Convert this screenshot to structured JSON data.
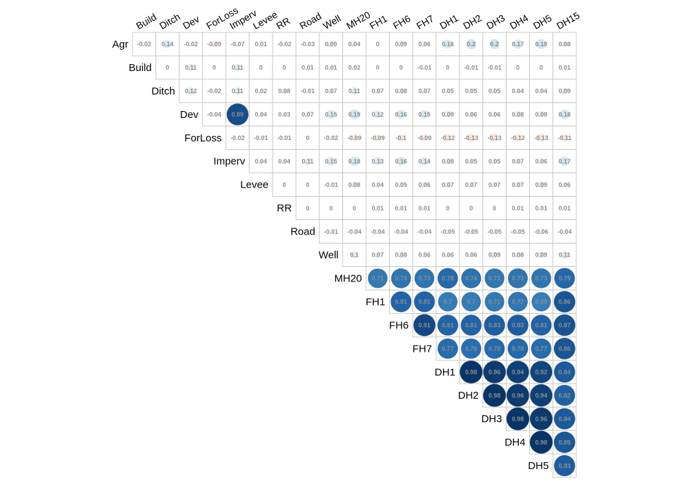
{
  "chart_data": {
    "type": "heatmap",
    "variant": "correlation-upper-triangle-circles",
    "title": "",
    "row_labels": [
      "Agr",
      "Build",
      "Ditch",
      "Dev",
      "ForLoss",
      "Imperv",
      "Levee",
      "RR",
      "Road",
      "Well",
      "MH20",
      "FH1",
      "FH6",
      "FH7",
      "DH1",
      "DH2",
      "DH3",
      "DH4",
      "DH5"
    ],
    "col_labels": [
      "Build",
      "Ditch",
      "Dev",
      "ForLoss",
      "Imperv",
      "Levee",
      "RR",
      "Road",
      "Well",
      "MH20",
      "FH1",
      "FH6",
      "FH7",
      "DH1",
      "DH2",
      "DH3",
      "DH4",
      "DH5",
      "DH15"
    ],
    "values": [
      [
        -0.02,
        0.14,
        -0.02,
        -0.09,
        -0.07,
        0.01,
        -0.02,
        -0.03,
        0.09,
        0.04,
        0,
        0.09,
        0.06,
        0.16,
        0.2,
        0.2,
        0.17,
        0.19,
        0.08
      ],
      [
        0,
        0.11,
        0,
        0.11,
        0,
        0,
        0.01,
        0.01,
        0.02,
        0,
        0,
        -0.01,
        0,
        -0.01,
        -0.01,
        0,
        0,
        0.01
      ],
      [
        0.12,
        -0.02,
        0.11,
        0.02,
        0.08,
        -0.01,
        0.07,
        0.11,
        0.07,
        0.08,
        0.07,
        0.05,
        0.05,
        0.05,
        0.04,
        0.04,
        0.09
      ],
      [
        -0.04,
        0.89,
        0.04,
        0.03,
        0.07,
        0.15,
        0.19,
        0.12,
        0.16,
        0.15,
        0.09,
        0.06,
        0.06,
        0.08,
        0.09,
        0.18
      ],
      [
        -0.02,
        -0.01,
        -0.01,
        0,
        -0.02,
        -0.09,
        -0.09,
        -0.1,
        -0.09,
        -0.12,
        -0.13,
        -0.13,
        -0.12,
        -0.13,
        -0.11
      ],
      [
        0.04,
        0.04,
        0.11,
        0.15,
        0.18,
        0.13,
        0.16,
        0.14,
        0.08,
        0.05,
        0.05,
        0.07,
        0.06,
        0.17
      ],
      [
        0,
        0,
        -0.01,
        0.08,
        0.04,
        0.05,
        0.06,
        0.07,
        0.07,
        0.07,
        0.07,
        0.09,
        0.06
      ],
      [
        0,
        0,
        0,
        0.01,
        0.01,
        0.01,
        0,
        0,
        0,
        0.01,
        0.01,
        0.01
      ],
      [
        -0.01,
        -0.04,
        -0.04,
        -0.04,
        -0.04,
        -0.05,
        -0.05,
        -0.05,
        -0.05,
        -0.06,
        -0.04
      ],
      [
        0.1,
        0.07,
        0.08,
        0.06,
        0.06,
        0.06,
        0.09,
        0.08,
        0.09,
        0.11
      ],
      [
        0.71,
        0.73,
        0.73,
        0.78,
        0.74,
        0.72,
        0.73,
        0.73,
        0.79
      ],
      [
        0.81,
        0.81,
        0.7,
        0.7,
        0.71,
        0.72,
        0.69,
        0.86
      ],
      [
        0.91,
        0.81,
        0.81,
        0.83,
        0.83,
        0.81,
        0.87
      ],
      [
        0.77,
        0.76,
        0.78,
        0.78,
        0.77,
        0.86
      ],
      [
        0.98,
        0.96,
        0.94,
        0.92,
        0.84
      ],
      [
        0.98,
        0.96,
        0.94,
        0.82
      ],
      [
        0.98,
        0.96,
        0.84
      ],
      [
        0.98,
        0.85
      ],
      [
        0.83
      ]
    ],
    "value_range": [
      -1,
      1
    ],
    "colors": {
      "positive": "#053061",
      "negative": "#67001f",
      "neutral": "#f7f7f7"
    },
    "grid": true,
    "legend": "none"
  }
}
